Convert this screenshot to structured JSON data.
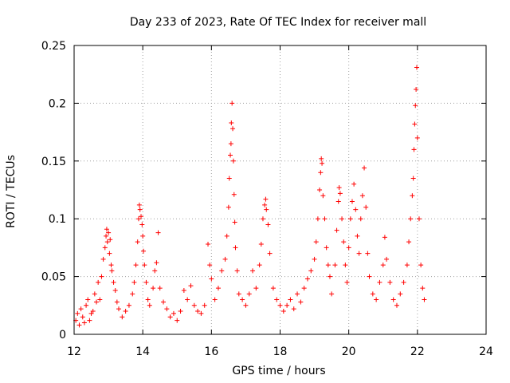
{
  "chart_data": {
    "type": "scatter",
    "title": "Day 233 of 2023, Rate Of TEC Index for receiver mall",
    "xlabel": "GPS time / hours",
    "ylabel": "ROTI / TECUs",
    "xlim": [
      12,
      24
    ],
    "ylim": [
      0,
      0.25
    ],
    "x_ticks": [
      "12",
      "14",
      "16",
      "18",
      "20",
      "22",
      "24"
    ],
    "y_ticks": [
      "0",
      "0.05",
      "0.1",
      "0.15",
      "0.2",
      "0.25"
    ],
    "grid": true,
    "marker": "plus",
    "color": "#ff0000",
    "series": [
      {
        "points": [
          [
            12.05,
            0.012
          ],
          [
            12.1,
            0.018
          ],
          [
            12.15,
            0.008
          ],
          [
            12.2,
            0.022
          ],
          [
            12.25,
            0.015
          ],
          [
            12.3,
            0.01
          ],
          [
            12.35,
            0.025
          ],
          [
            12.4,
            0.03
          ],
          [
            12.45,
            0.012
          ],
          [
            12.5,
            0.018
          ],
          [
            12.55,
            0.02
          ],
          [
            12.6,
            0.035
          ],
          [
            12.65,
            0.028
          ],
          [
            12.7,
            0.045
          ],
          [
            12.75,
            0.03
          ],
          [
            12.8,
            0.05
          ],
          [
            12.85,
            0.065
          ],
          [
            12.9,
            0.075
          ],
          [
            12.93,
            0.085
          ],
          [
            12.95,
            0.091
          ],
          [
            12.97,
            0.08
          ],
          [
            13.0,
            0.088
          ],
          [
            13.03,
            0.07
          ],
          [
            13.05,
            0.082
          ],
          [
            13.08,
            0.06
          ],
          [
            13.1,
            0.055
          ],
          [
            13.15,
            0.045
          ],
          [
            13.2,
            0.038
          ],
          [
            13.25,
            0.028
          ],
          [
            13.3,
            0.022
          ],
          [
            13.4,
            0.015
          ],
          [
            13.5,
            0.02
          ],
          [
            13.6,
            0.025
          ],
          [
            13.7,
            0.035
          ],
          [
            13.75,
            0.045
          ],
          [
            13.8,
            0.06
          ],
          [
            13.85,
            0.08
          ],
          [
            13.88,
            0.1
          ],
          [
            13.9,
            0.112
          ],
          [
            13.92,
            0.108
          ],
          [
            13.95,
            0.102
          ],
          [
            13.98,
            0.095
          ],
          [
            14.0,
            0.085
          ],
          [
            14.02,
            0.072
          ],
          [
            14.05,
            0.06
          ],
          [
            14.1,
            0.045
          ],
          [
            14.15,
            0.03
          ],
          [
            14.2,
            0.025
          ],
          [
            14.3,
            0.04
          ],
          [
            14.35,
            0.055
          ],
          [
            14.4,
            0.062
          ],
          [
            14.45,
            0.088
          ],
          [
            14.5,
            0.04
          ],
          [
            14.6,
            0.028
          ],
          [
            14.7,
            0.022
          ],
          [
            14.8,
            0.015
          ],
          [
            14.9,
            0.018
          ],
          [
            15.0,
            0.012
          ],
          [
            15.1,
            0.02
          ],
          [
            15.2,
            0.038
          ],
          [
            15.3,
            0.03
          ],
          [
            15.4,
            0.042
          ],
          [
            15.5,
            0.025
          ],
          [
            15.6,
            0.02
          ],
          [
            15.7,
            0.018
          ],
          [
            15.8,
            0.025
          ],
          [
            15.9,
            0.078
          ],
          [
            15.95,
            0.06
          ],
          [
            16.0,
            0.048
          ],
          [
            16.1,
            0.03
          ],
          [
            16.2,
            0.04
          ],
          [
            16.3,
            0.055
          ],
          [
            16.4,
            0.065
          ],
          [
            16.45,
            0.085
          ],
          [
            16.5,
            0.11
          ],
          [
            16.52,
            0.135
          ],
          [
            16.55,
            0.155
          ],
          [
            16.57,
            0.165
          ],
          [
            16.58,
            0.183
          ],
          [
            16.6,
            0.2
          ],
          [
            16.62,
            0.178
          ],
          [
            16.64,
            0.15
          ],
          [
            16.66,
            0.121
          ],
          [
            16.68,
            0.097
          ],
          [
            16.7,
            0.075
          ],
          [
            16.75,
            0.055
          ],
          [
            16.8,
            0.035
          ],
          [
            16.9,
            0.03
          ],
          [
            17.0,
            0.025
          ],
          [
            17.1,
            0.035
          ],
          [
            17.2,
            0.055
          ],
          [
            17.3,
            0.04
          ],
          [
            17.4,
            0.06
          ],
          [
            17.45,
            0.078
          ],
          [
            17.5,
            0.1
          ],
          [
            17.55,
            0.112
          ],
          [
            17.58,
            0.117
          ],
          [
            17.6,
            0.108
          ],
          [
            17.65,
            0.095
          ],
          [
            17.7,
            0.07
          ],
          [
            17.8,
            0.04
          ],
          [
            17.9,
            0.03
          ],
          [
            18.0,
            0.025
          ],
          [
            18.1,
            0.02
          ],
          [
            18.2,
            0.025
          ],
          [
            18.3,
            0.03
          ],
          [
            18.4,
            0.022
          ],
          [
            18.5,
            0.035
          ],
          [
            18.6,
            0.028
          ],
          [
            18.7,
            0.04
          ],
          [
            18.8,
            0.048
          ],
          [
            18.9,
            0.055
          ],
          [
            19.0,
            0.065
          ],
          [
            19.05,
            0.08
          ],
          [
            19.1,
            0.1
          ],
          [
            19.15,
            0.125
          ],
          [
            19.18,
            0.14
          ],
          [
            19.2,
            0.152
          ],
          [
            19.22,
            0.148
          ],
          [
            19.25,
            0.12
          ],
          [
            19.3,
            0.1
          ],
          [
            19.35,
            0.075
          ],
          [
            19.4,
            0.06
          ],
          [
            19.45,
            0.05
          ],
          [
            19.5,
            0.035
          ],
          [
            19.6,
            0.06
          ],
          [
            19.65,
            0.09
          ],
          [
            19.7,
            0.115
          ],
          [
            19.72,
            0.127
          ],
          [
            19.75,
            0.122
          ],
          [
            19.8,
            0.1
          ],
          [
            19.85,
            0.08
          ],
          [
            19.9,
            0.06
          ],
          [
            19.95,
            0.045
          ],
          [
            20.0,
            0.075
          ],
          [
            20.05,
            0.1
          ],
          [
            20.1,
            0.115
          ],
          [
            20.15,
            0.13
          ],
          [
            20.2,
            0.108
          ],
          [
            20.25,
            0.085
          ],
          [
            20.3,
            0.07
          ],
          [
            20.35,
            0.1
          ],
          [
            20.4,
            0.12
          ],
          [
            20.45,
            0.144
          ],
          [
            20.5,
            0.11
          ],
          [
            20.55,
            0.07
          ],
          [
            20.6,
            0.05
          ],
          [
            20.7,
            0.035
          ],
          [
            20.8,
            0.03
          ],
          [
            20.9,
            0.045
          ],
          [
            21.0,
            0.06
          ],
          [
            21.05,
            0.084
          ],
          [
            21.1,
            0.065
          ],
          [
            21.2,
            0.045
          ],
          [
            21.3,
            0.03
          ],
          [
            21.4,
            0.025
          ],
          [
            21.5,
            0.035
          ],
          [
            21.6,
            0.045
          ],
          [
            21.7,
            0.06
          ],
          [
            21.75,
            0.08
          ],
          [
            21.8,
            0.1
          ],
          [
            21.85,
            0.12
          ],
          [
            21.88,
            0.135
          ],
          [
            21.9,
            0.16
          ],
          [
            21.92,
            0.182
          ],
          [
            21.94,
            0.198
          ],
          [
            21.96,
            0.212
          ],
          [
            21.98,
            0.231
          ],
          [
            22.0,
            0.17
          ],
          [
            22.05,
            0.1
          ],
          [
            22.1,
            0.06
          ],
          [
            22.15,
            0.04
          ],
          [
            22.2,
            0.03
          ]
        ]
      }
    ]
  }
}
